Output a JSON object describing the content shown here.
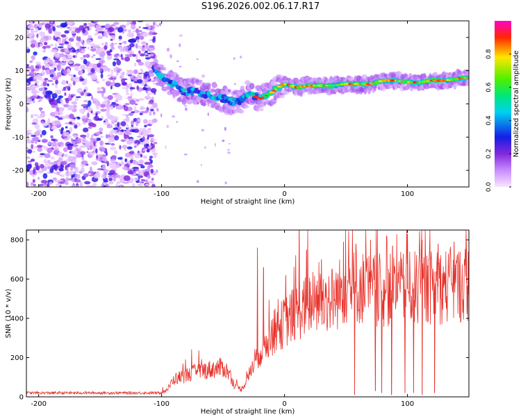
{
  "title": "S196.2026.002.06.17.R17",
  "colors": {
    "snr_line": "#e8312a",
    "axis": "#000000",
    "background": "#ffffff",
    "colorbar": [
      "#ff00ff",
      "#0000ff",
      "#00ffff",
      "#00ff00",
      "#ffff00",
      "#ff0000",
      "#ff00c8"
    ]
  },
  "chart_data": [
    {
      "type": "heatmap",
      "name": "spectrogram",
      "xlabel": "Height of straight line (km)",
      "ylabel": "Frequency (Hz)",
      "xlim": [
        -210,
        150
      ],
      "ylim": [
        -25,
        25
      ],
      "xticks": [
        -200,
        -100,
        0,
        100
      ],
      "xtick_labels": [
        "-200",
        "-100",
        "0",
        "100"
      ],
      "yticks": [
        20,
        10,
        0,
        -10,
        -20
      ],
      "ytick_labels": [
        "20",
        "10",
        "0",
        "-10",
        "-20"
      ],
      "noise_region_x": [
        -210,
        -105
      ],
      "signal_track": {
        "x": [
          -105,
          -100,
          -95,
          -90,
          -85,
          -80,
          -75,
          -70,
          -65,
          -60,
          -55,
          -50,
          -45,
          -40,
          -35,
          -30,
          -25,
          -20,
          -15,
          -10,
          -5,
          0,
          10,
          20,
          30,
          40,
          50,
          60,
          70,
          80,
          90,
          100,
          110,
          120,
          130,
          140,
          150
        ],
        "freq": [
          10,
          8,
          7,
          6,
          4,
          3.5,
          4,
          3.5,
          3,
          2.5,
          2,
          1.5,
          1,
          0.5,
          1,
          3,
          2.5,
          1.5,
          2.5,
          3.5,
          5,
          6,
          5,
          5.5,
          5.5,
          5.5,
          6,
          6,
          6,
          7,
          7,
          6.5,
          6.5,
          7,
          7,
          7.5,
          8
        ]
      },
      "colorbar": {
        "label": "Normalized spectral amplitude",
        "range": [
          0.0,
          1.0
        ],
        "ticks": [
          0.0,
          0.2,
          0.4,
          0.6,
          0.8
        ],
        "tick_labels": [
          "0.0",
          "0.2",
          "0.4",
          "0.6",
          "0.8"
        ]
      }
    },
    {
      "type": "line",
      "name": "snr",
      "xlabel": "Height of straight line (km)",
      "ylabel": "SNR (10 * v/v)",
      "xlim": [
        -210,
        150
      ],
      "ylim": [
        0,
        850
      ],
      "xticks": [
        -200,
        -100,
        0,
        100
      ],
      "xtick_labels": [
        "-200",
        "-100",
        "0",
        "100"
      ],
      "yticks": [
        0,
        200,
        400,
        600,
        800
      ],
      "ytick_labels": [
        "0",
        "200",
        "400",
        "600",
        "800"
      ],
      "envelope": {
        "x": [
          -210,
          -100,
          -95,
          -90,
          -80,
          -70,
          -60,
          -50,
          -45,
          -40,
          -35,
          -30,
          -25,
          -20,
          -15,
          -10,
          -5,
          0,
          10,
          20,
          30,
          40,
          50,
          60,
          80,
          100,
          120,
          140,
          150
        ],
        "y": [
          20,
          20,
          40,
          90,
          110,
          130,
          140,
          150,
          120,
          50,
          40,
          90,
          180,
          230,
          280,
          320,
          350,
          380,
          430,
          470,
          490,
          500,
          560,
          560,
          540,
          550,
          560,
          570,
          580
        ]
      },
      "spikes": [
        {
          "x": -22,
          "y": 760
        },
        {
          "x": -17,
          "y": 660
        },
        {
          "x": 1,
          "y": 620
        },
        {
          "x": 12,
          "y": 850
        },
        {
          "x": 18,
          "y": 750
        },
        {
          "x": 30,
          "y": 700
        },
        {
          "x": 48,
          "y": 790
        },
        {
          "x": 58,
          "y": 780
        },
        {
          "x": 70,
          "y": 800
        },
        {
          "x": 88,
          "y": 770
        },
        {
          "x": 100,
          "y": 830
        },
        {
          "x": 112,
          "y": 800
        },
        {
          "x": 125,
          "y": 780
        },
        {
          "x": 138,
          "y": 790
        },
        {
          "x": 148,
          "y": 760
        }
      ],
      "dropouts": [
        {
          "x": 57,
          "y": 10
        },
        {
          "x": 74,
          "y": 30
        },
        {
          "x": 79,
          "y": 20
        },
        {
          "x": 87,
          "y": 10
        },
        {
          "x": 98,
          "y": 20
        },
        {
          "x": 105,
          "y": 20
        },
        {
          "x": 112,
          "y": 10
        },
        {
          "x": 122,
          "y": 20
        }
      ]
    }
  ]
}
